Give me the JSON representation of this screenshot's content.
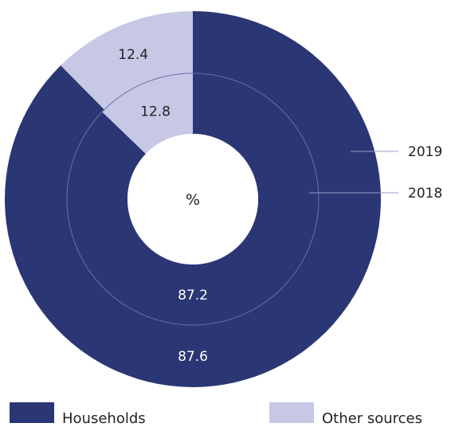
{
  "chart_data": {
    "type": "pie",
    "center_label": "%",
    "categories": [
      "Households",
      "Other sources"
    ],
    "series": [
      {
        "name": "2019",
        "values": [
          87.6,
          12.4
        ]
      },
      {
        "name": "2018",
        "values": [
          87.2,
          12.8
        ]
      }
    ],
    "colors": [
      "#2b3674",
      "#c6c8e6"
    ],
    "label_colors": [
      "#ffffff",
      "#222222"
    ],
    "legend": {
      "position": "bottom",
      "items": [
        "Households",
        "Other sources"
      ]
    }
  }
}
